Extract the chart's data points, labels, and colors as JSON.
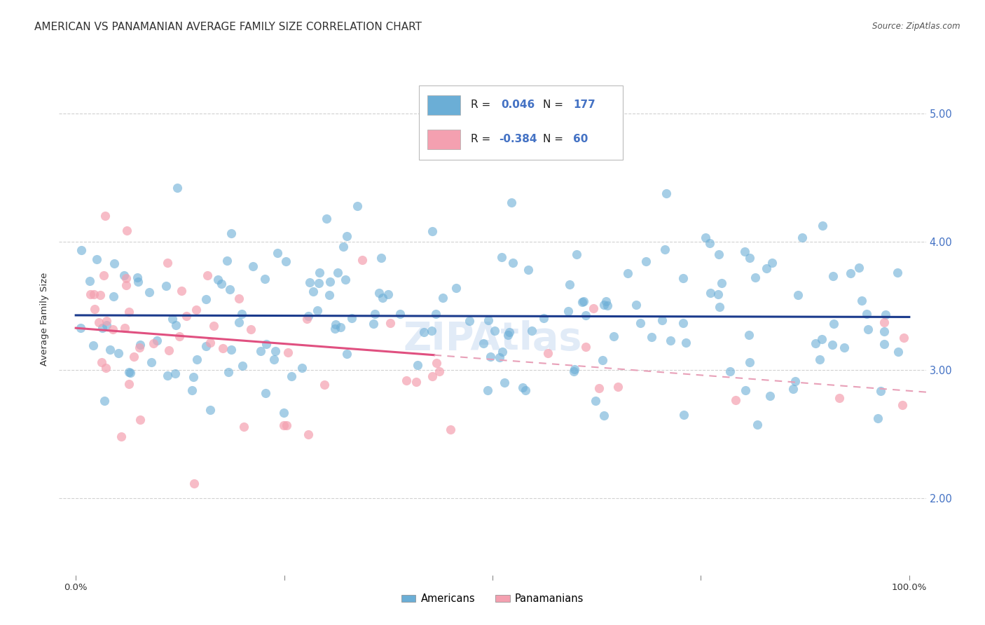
{
  "title": "AMERICAN VS PANAMANIAN AVERAGE FAMILY SIZE CORRELATION CHART",
  "source": "Source: ZipAtlas.com",
  "ylabel": "Average Family Size",
  "yticks": [
    2.0,
    3.0,
    4.0,
    5.0
  ],
  "ylim": [
    1.4,
    5.4
  ],
  "xlim": [
    -0.02,
    1.02
  ],
  "american_R": 0.046,
  "american_N": 177,
  "panamanian_R": -0.384,
  "panamanian_N": 60,
  "american_color": "#6baed6",
  "panamanian_color": "#f4a0b0",
  "american_line_color": "#1a3a8c",
  "panamanian_line_color": "#e05080",
  "panamanian_line_dashed_color": "#e8a0b8",
  "legend_american_label": "Americans",
  "legend_panamanian_label": "Panamanians",
  "background_color": "#ffffff",
  "grid_color": "#cccccc",
  "title_fontsize": 11,
  "american_seed": 42,
  "panamanian_seed": 99
}
